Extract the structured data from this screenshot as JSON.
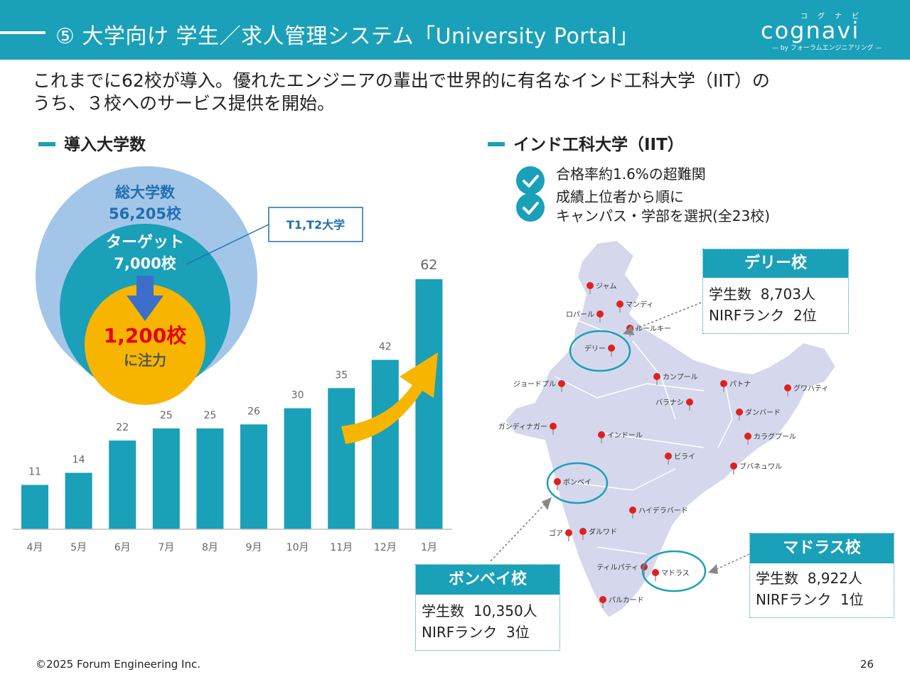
{
  "header": {
    "title": "⑤ 大学向け 学生／求人管理システム「University Portal」",
    "logo_word": "cognavi",
    "logo_kana": "コグナビ",
    "logo_sub": "— by フォーラムエンジニアリング —"
  },
  "lead": {
    "line1": "これまでに62校が導入。優れたエンジニアの輩出で世界的に有名なインド工科大学（IIT）の",
    "line2": "うち、３校へのサービス提供を開始。"
  },
  "left_section": {
    "heading": "導入大学数"
  },
  "right_section": {
    "heading": "インド工科大学（IIT）"
  },
  "circles": {
    "outer_label": "総大学数",
    "outer_value": "56,205校",
    "middle_label": "ターゲット",
    "middle_value": "7,000校",
    "inner_value": "1,200校",
    "inner_label": "に注力",
    "callout": "T1,T2大学"
  },
  "checks": [
    {
      "text": "合格率約1.6%の超難関"
    },
    {
      "line1": "成績上位者から順に",
      "line2": "キャンパス・学部を選択(全23校)"
    }
  ],
  "campuses": {
    "delhi": {
      "title": "デリー校",
      "students_label": "学生数",
      "students": "8,703人",
      "rank_label": "NIRFランク",
      "rank": "2位"
    },
    "bombay": {
      "title": "ボンベイ校",
      "students_label": "学生数",
      "students": "10,350人",
      "rank_label": "NIRFランク",
      "rank": "3位"
    },
    "madras": {
      "title": "マドラス校",
      "students_label": "学生数",
      "students": "8,922人",
      "rank_label": "NIRFランク",
      "rank": "1位"
    }
  },
  "map_cities": [
    "ジャム",
    "マンディ",
    "ロパール",
    "ルールキー",
    "デリー",
    "カンプール",
    "パトナ",
    "グワハティ",
    "ジョードプル",
    "バラナシ",
    "ダンバード",
    "ガンディナガー",
    "インドール",
    "カラグプール",
    "ビライ",
    "ブバネュワル",
    "ボンベイ",
    "ハイデラバード",
    "ゴア",
    "ダルワド",
    "ティルパティ",
    "マドラス",
    "パルカード"
  ],
  "chart_data": {
    "type": "bar",
    "categories": [
      "4月",
      "5月",
      "6月",
      "7月",
      "8月",
      "9月",
      "10月",
      "11月",
      "12月",
      "1月"
    ],
    "values": [
      11,
      14,
      22,
      25,
      25,
      26,
      30,
      35,
      42,
      62
    ],
    "title": "",
    "xlabel": "",
    "ylabel": "",
    "ylim": [
      0,
      62
    ],
    "grid": false,
    "legend": "none",
    "bar_color": "#1aa0b8"
  },
  "colors": {
    "accent": "#1aa0b8",
    "outer_circle": "#a3c6e8",
    "inner_circle": "#f7b500",
    "highlight_text": "#e60012",
    "arrow_yellow": "#f7b500",
    "map_fill": "#d5d8ec"
  },
  "footer": {
    "copyright": "©2025 Forum Engineering Inc.",
    "page": "26"
  }
}
